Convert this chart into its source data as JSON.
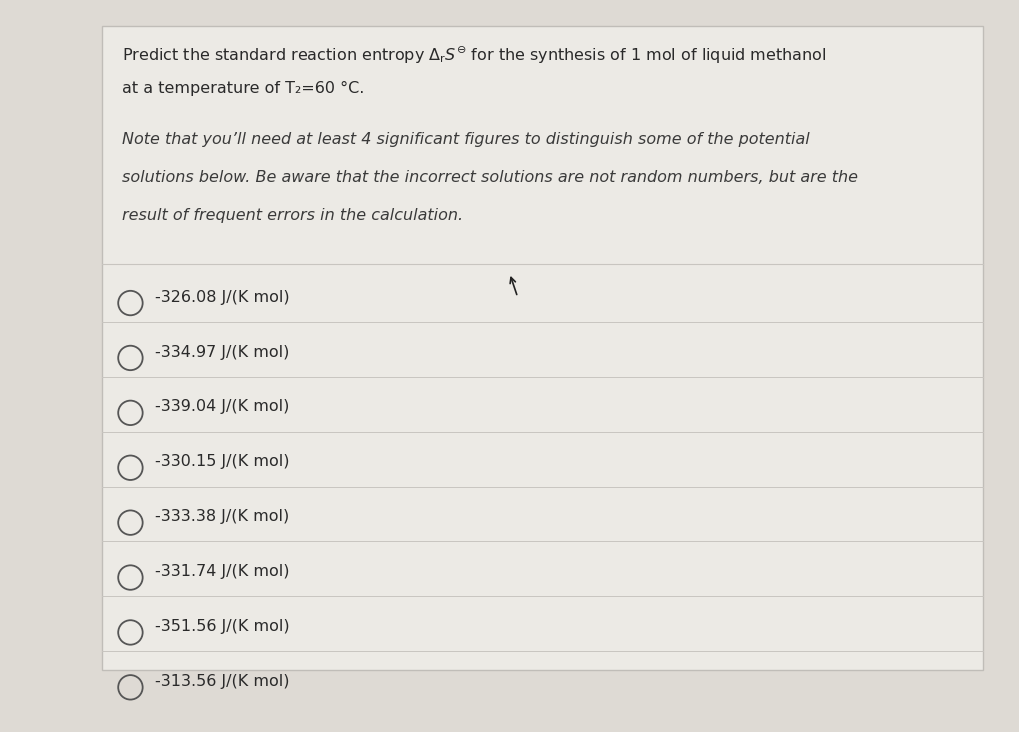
{
  "bg_color": "#dedad4",
  "card_bg": "#eceae5",
  "border_color": "#c0bdb8",
  "options": [
    "-326.08 J/(K mol)",
    "-334.97 J/(K mol)",
    "-339.04 J/(K mol)",
    "-330.15 J/(K mol)",
    "-333.38 J/(K mol)",
    "-331.74 J/(K mol)",
    "-351.56 J/(K mol)",
    "-313.56 J/(K mol)"
  ],
  "text_color": "#2a2a2a",
  "line_color": "#c8c5c0",
  "circle_color": "#555555",
  "note_color": "#3a3a3a",
  "title_fontsize": 11.5,
  "note_fontsize": 11.5,
  "option_fontsize": 11.5
}
